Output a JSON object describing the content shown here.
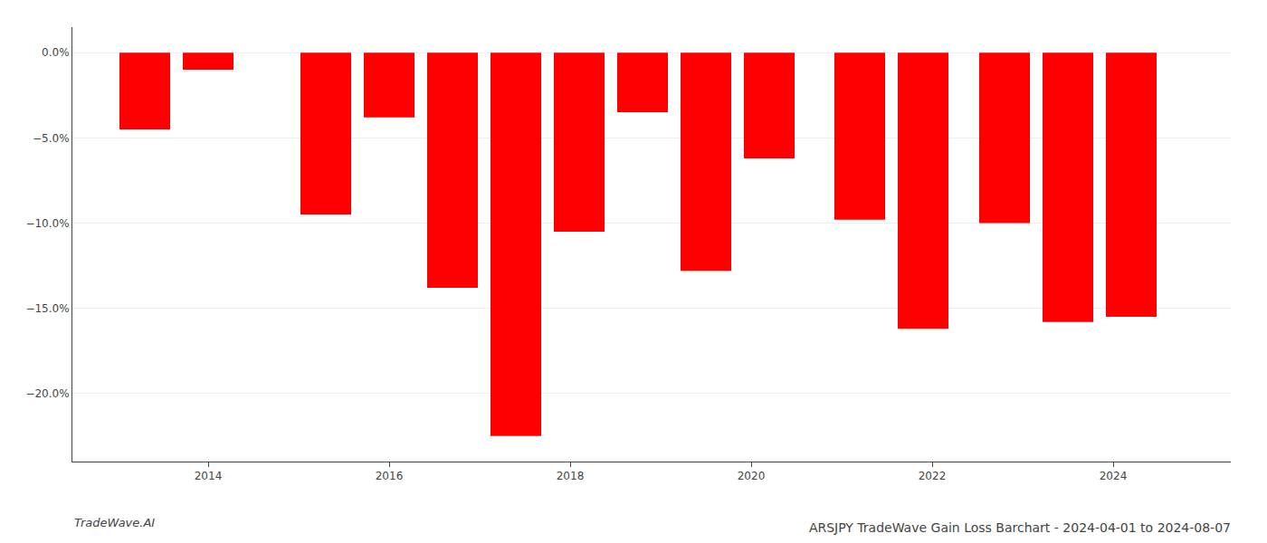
{
  "chart_data": {
    "type": "bar",
    "title": "ARSJPY TradeWave Gain Loss Barchart - 2024-04-01 to 2024-08-07",
    "annotations": [
      "TradeWave.AI"
    ],
    "x": [
      2013.3,
      2014.0,
      2015.3,
      2016.0,
      2016.7,
      2017.4,
      2018.1,
      2018.8,
      2019.5,
      2020.2,
      2021.2,
      2021.9,
      2022.8,
      2023.5,
      2024.2
    ],
    "values": [
      -4.5,
      -1.0,
      -9.5,
      -3.8,
      -13.8,
      -22.5,
      -10.5,
      -3.5,
      -12.8,
      -6.2,
      -9.8,
      -16.2,
      -10.0,
      -15.8,
      -15.5
    ],
    "color": "#ff0000",
    "xlim": [
      2012.5,
      2025.3
    ],
    "xticks": [
      2014,
      2016,
      2018,
      2020,
      2022,
      2024
    ],
    "ylim": [
      -24,
      1.5
    ],
    "yticks": [
      {
        "value": 0.0,
        "label": "0.0%"
      },
      {
        "value": -5.0,
        "label": "−5.0%"
      },
      {
        "value": -10.0,
        "label": "−10.0%"
      },
      {
        "value": -15.0,
        "label": "−15.0%"
      },
      {
        "value": -20.0,
        "label": "−20.0%"
      }
    ],
    "grid": true
  }
}
